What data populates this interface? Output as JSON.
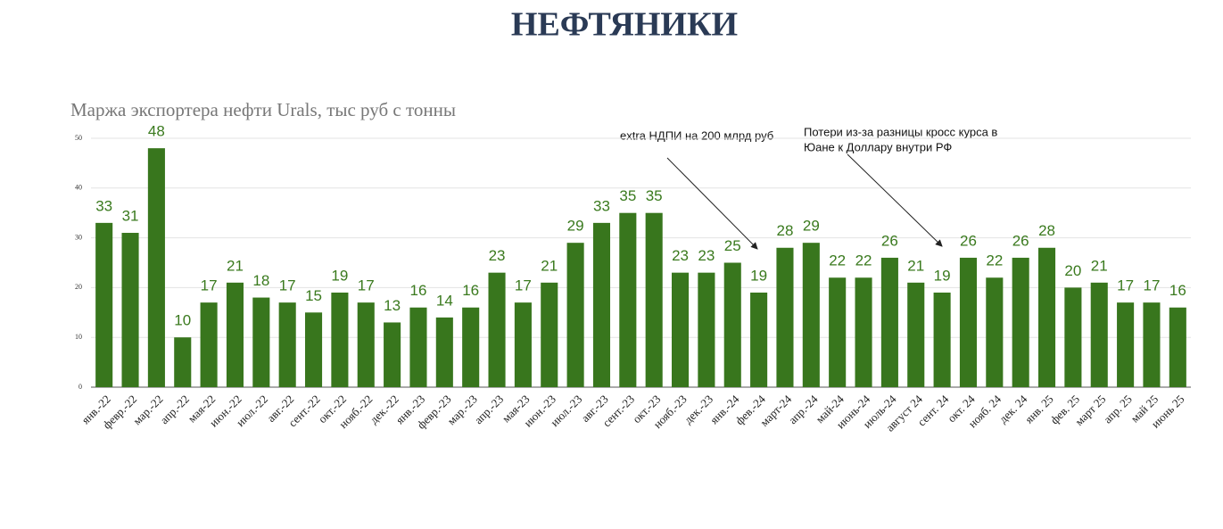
{
  "title": "НЕФТЯНИКИ",
  "chart_data": {
    "type": "bar",
    "title": "Маржа экспортера нефти Urals, тыс руб с тонны",
    "categories": [
      "янв.-22",
      "февр.-22",
      "мар.-22",
      "апр.-22",
      "мая-22",
      "июн.-22",
      "июл.-22",
      "авг.-22",
      "сент.-22",
      "окт.-22",
      "нояб.-22",
      "дек.-22",
      "янв.-23",
      "февр.-23",
      "мар.-23",
      "апр.-23",
      "мая-23",
      "июн.-23",
      "июл.-23",
      "авг.-23",
      "сент.-23",
      "окт.-23",
      "нояб.-23",
      "дек.-23",
      "янв.-24",
      "фев.-24",
      "март-24",
      "апр.-24",
      "май-24",
      "июнь-24",
      "июль-24",
      "август 24",
      "сент. 24",
      "окт. 24",
      "нояб. 24",
      "дек. 24",
      "янв. 25",
      "фев. 25",
      "март 25",
      "апр. 25",
      "май 25",
      "июнь 25"
    ],
    "values": [
      33,
      31,
      48,
      10,
      17,
      21,
      18,
      17,
      15,
      19,
      17,
      13,
      16,
      14,
      16,
      23,
      17,
      21,
      29,
      33,
      35,
      35,
      23,
      23,
      25,
      19,
      28,
      29,
      22,
      22,
      26,
      21,
      19,
      26,
      22,
      26,
      28,
      20,
      21,
      17,
      17,
      16
    ],
    "color": "#38761d",
    "label_color": "#3a7a1e",
    "ylim": [
      0,
      50
    ],
    "yticks": [
      0,
      10,
      20,
      30,
      40,
      50
    ],
    "grid": true,
    "annotations": [
      [
        "extra НДПИ на 200 млрд руб"
      ],
      [
        "Потери из-за разницы кросс курса в",
        "Юане к Доллару внутри РФ"
      ]
    ]
  }
}
